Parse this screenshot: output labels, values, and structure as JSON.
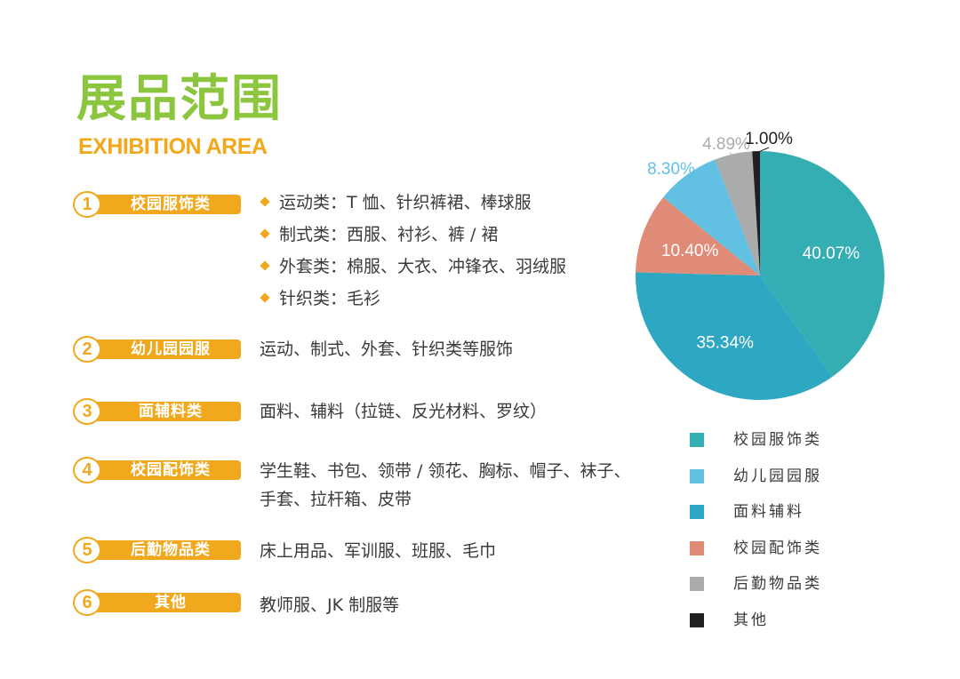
{
  "header": {
    "title_cn": "展品范围",
    "title_en": "EXHIBITION AREA"
  },
  "categories": [
    {
      "number": "1",
      "label": "校园服饰类",
      "bullets": [
        "运动类：T 恤、针织裤裙、棒球服",
        "制式类：西服、衬衫、裤 / 裙",
        "外套类：棉服、大衣、冲锋衣、羽绒服",
        "针织类：毛衫"
      ]
    },
    {
      "number": "2",
      "label": "幼儿园园服",
      "text": "运动、制式、外套、针织类等服饰"
    },
    {
      "number": "3",
      "label": "面辅料类",
      "text": "面料、辅料（拉链、反光材料、罗纹）"
    },
    {
      "number": "4",
      "label": "校园配饰类",
      "text_line1": "学生鞋、书包、领带 / 领花、胸标、帽子、袜子、",
      "text_line2": "手套、拉杆箱、皮带"
    },
    {
      "number": "5",
      "label": "后勤物品类",
      "text": "床上用品、军训服、班服、毛巾"
    },
    {
      "number": "6",
      "label": "其他",
      "text": "教师服、JK 制服等"
    }
  ],
  "chart_data": {
    "type": "pie",
    "title": "",
    "slices": [
      {
        "name": "校园服饰类",
        "value": 40.07,
        "label": "40.07%",
        "color": "#35aeb3"
      },
      {
        "name": "面料辅料",
        "value": 35.34,
        "label": "35.34%",
        "color": "#2ea7c2"
      },
      {
        "name": "校园配饰类",
        "value": 10.4,
        "label": "10.40%",
        "color": "#e08a78"
      },
      {
        "name": "幼儿园园服",
        "value": 8.3,
        "label": "8.30%",
        "color": "#62c0e3"
      },
      {
        "name": "后勤物品类",
        "value": 4.89,
        "label": "4.89%",
        "color": "#a9abad"
      },
      {
        "name": "其他",
        "value": 1.0,
        "label": "1.00%",
        "color": "#231f20"
      }
    ],
    "legend": [
      {
        "label": "校园服饰类",
        "color": "#35aeb3"
      },
      {
        "label": "幼儿园园服",
        "color": "#62c0e3"
      },
      {
        "label": "面料辅料",
        "color": "#2ea7c2"
      },
      {
        "label": "校园配饰类",
        "color": "#e08a78"
      },
      {
        "label": "后勤物品类",
        "color": "#a9abad"
      },
      {
        "label": "其他",
        "color": "#231f20"
      }
    ],
    "legend_position": "bottom-right",
    "label_colors": {
      "inside": "#ffffff",
      "8.30%": "#62c0e3",
      "4.89%": "#a9abad",
      "1.00%": "#231f20"
    }
  }
}
